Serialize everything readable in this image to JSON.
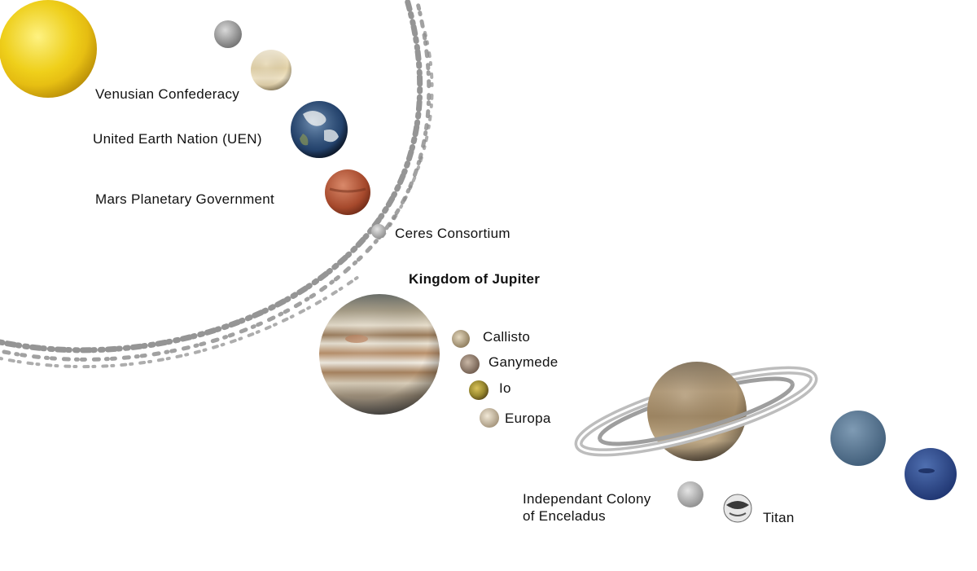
{
  "labels": {
    "venus": "Venusian Confederacy",
    "earth": "United Earth Nation (UEN)",
    "mars": "Mars Planetary Government",
    "ceres": "Ceres Consortium",
    "jupiter": "Kingdom of Jupiter",
    "callisto": "Callisto",
    "ganymede": "Ganymede",
    "io": "Io",
    "europa": "Europa",
    "enceladus_line1": "Independant Colony",
    "enceladus_line2": "of Enceladus",
    "titan": "Titan"
  },
  "bodies": [
    {
      "name": "Sun",
      "icon": "sun-icon"
    },
    {
      "name": "Mercury",
      "icon": "mercury-icon"
    },
    {
      "name": "Venus",
      "icon": "venus-icon"
    },
    {
      "name": "Earth",
      "icon": "earth-icon"
    },
    {
      "name": "Mars",
      "icon": "mars-icon"
    },
    {
      "name": "Ceres",
      "icon": "ceres-icon"
    },
    {
      "name": "Jupiter",
      "icon": "jupiter-icon"
    },
    {
      "name": "Callisto",
      "icon": "callisto-icon"
    },
    {
      "name": "Ganymede",
      "icon": "ganymede-icon"
    },
    {
      "name": "Io",
      "icon": "io-icon"
    },
    {
      "name": "Europa",
      "icon": "europa-icon"
    },
    {
      "name": "Saturn",
      "icon": "saturn-icon"
    },
    {
      "name": "Enceladus",
      "icon": "enceladus-icon"
    },
    {
      "name": "Titan",
      "icon": "titan-icon"
    },
    {
      "name": "Uranus",
      "icon": "uranus-icon"
    },
    {
      "name": "Neptune",
      "icon": "neptune-icon"
    }
  ],
  "colors": {
    "asteroid_belt": "#8a8a8a",
    "sun": "#f2d21a",
    "jupiter_band": "#9a7a55",
    "saturn": "#a58f70",
    "uranus": "#5b7b98",
    "neptune": "#2f4f8e"
  }
}
